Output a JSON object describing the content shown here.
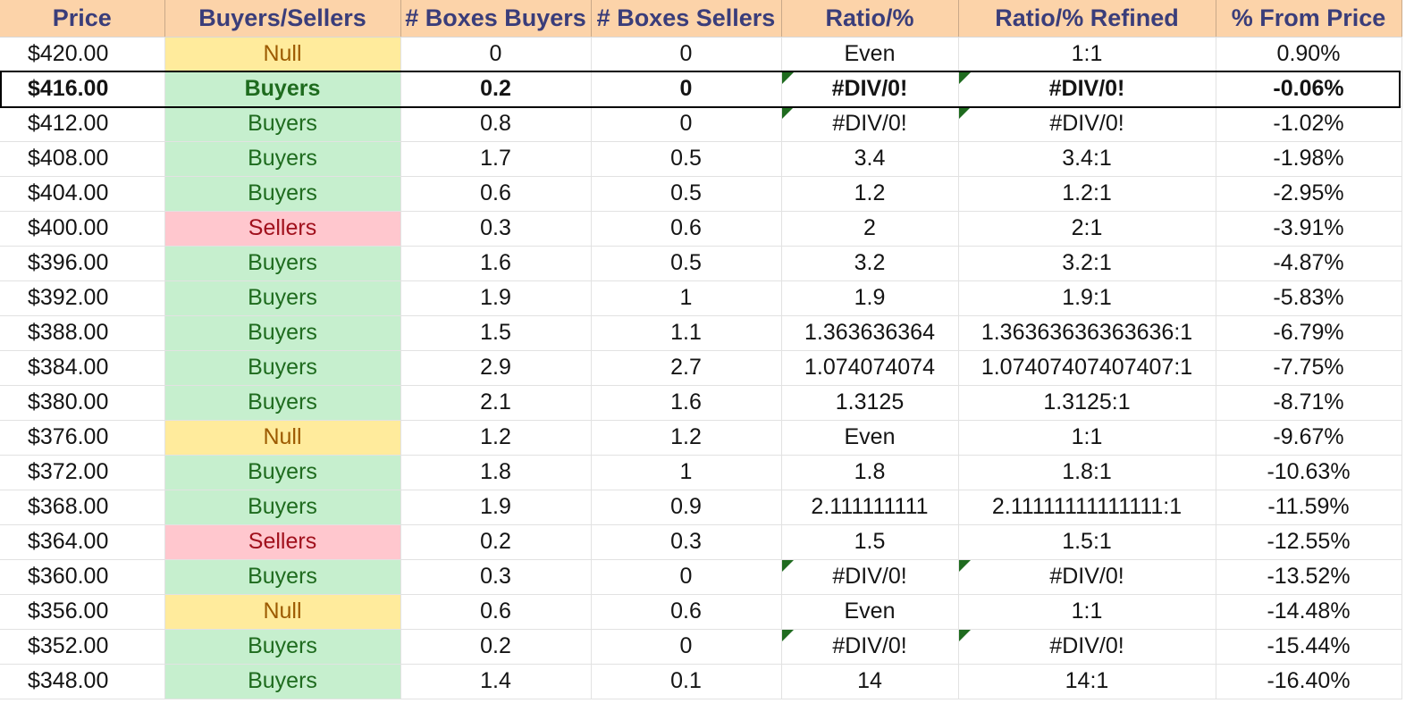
{
  "columns": [
    "Price",
    "Buyers/Sellers",
    "# Boxes Buyers",
    "# Boxes Sellers",
    "Ratio/%",
    "Ratio/% Refined",
    "% From Price"
  ],
  "current_row_index": 1,
  "colors": {
    "header_bg": "#fcd3a9",
    "header_text": "#3a3d7a",
    "buyers_bg": "#c6efce",
    "buyers_text": "#1e6b1e",
    "sellers_bg": "#ffc7ce",
    "sellers_text": "#a0101c",
    "null_bg": "#ffeb9c",
    "null_text": "#9c5a00",
    "error_flag": "#1f6b1f"
  },
  "rows": [
    {
      "price": "$420.00",
      "side": "Null",
      "buyers": "0",
      "sellers": "0",
      "ratio": "Even",
      "refined": "1:1",
      "from_price": "0.90%",
      "flag": false
    },
    {
      "price": "$416.00",
      "side": "Buyers",
      "buyers": "0.2",
      "sellers": "0",
      "ratio": "#DIV/0!",
      "refined": "#DIV/0!",
      "from_price": "-0.06%",
      "flag": true
    },
    {
      "price": "$412.00",
      "side": "Buyers",
      "buyers": "0.8",
      "sellers": "0",
      "ratio": "#DIV/0!",
      "refined": "#DIV/0!",
      "from_price": "-1.02%",
      "flag": true
    },
    {
      "price": "$408.00",
      "side": "Buyers",
      "buyers": "1.7",
      "sellers": "0.5",
      "ratio": "3.4",
      "refined": "3.4:1",
      "from_price": "-1.98%",
      "flag": false
    },
    {
      "price": "$404.00",
      "side": "Buyers",
      "buyers": "0.6",
      "sellers": "0.5",
      "ratio": "1.2",
      "refined": "1.2:1",
      "from_price": "-2.95%",
      "flag": false
    },
    {
      "price": "$400.00",
      "side": "Sellers",
      "buyers": "0.3",
      "sellers": "0.6",
      "ratio": "2",
      "refined": "2:1",
      "from_price": "-3.91%",
      "flag": false
    },
    {
      "price": "$396.00",
      "side": "Buyers",
      "buyers": "1.6",
      "sellers": "0.5",
      "ratio": "3.2",
      "refined": "3.2:1",
      "from_price": "-4.87%",
      "flag": false
    },
    {
      "price": "$392.00",
      "side": "Buyers",
      "buyers": "1.9",
      "sellers": "1",
      "ratio": "1.9",
      "refined": "1.9:1",
      "from_price": "-5.83%",
      "flag": false
    },
    {
      "price": "$388.00",
      "side": "Buyers",
      "buyers": "1.5",
      "sellers": "1.1",
      "ratio": "1.363636364",
      "refined": "1.36363636363636:1",
      "from_price": "-6.79%",
      "flag": false
    },
    {
      "price": "$384.00",
      "side": "Buyers",
      "buyers": "2.9",
      "sellers": "2.7",
      "ratio": "1.074074074",
      "refined": "1.07407407407407:1",
      "from_price": "-7.75%",
      "flag": false
    },
    {
      "price": "$380.00",
      "side": "Buyers",
      "buyers": "2.1",
      "sellers": "1.6",
      "ratio": "1.3125",
      "refined": "1.3125:1",
      "from_price": "-8.71%",
      "flag": false
    },
    {
      "price": "$376.00",
      "side": "Null",
      "buyers": "1.2",
      "sellers": "1.2",
      "ratio": "Even",
      "refined": "1:1",
      "from_price": "-9.67%",
      "flag": false
    },
    {
      "price": "$372.00",
      "side": "Buyers",
      "buyers": "1.8",
      "sellers": "1",
      "ratio": "1.8",
      "refined": "1.8:1",
      "from_price": "-10.63%",
      "flag": false
    },
    {
      "price": "$368.00",
      "side": "Buyers",
      "buyers": "1.9",
      "sellers": "0.9",
      "ratio": "2.111111111",
      "refined": "2.11111111111111:1",
      "from_price": "-11.59%",
      "flag": false
    },
    {
      "price": "$364.00",
      "side": "Sellers",
      "buyers": "0.2",
      "sellers": "0.3",
      "ratio": "1.5",
      "refined": "1.5:1",
      "from_price": "-12.55%",
      "flag": false
    },
    {
      "price": "$360.00",
      "side": "Buyers",
      "buyers": "0.3",
      "sellers": "0",
      "ratio": "#DIV/0!",
      "refined": "#DIV/0!",
      "from_price": "-13.52%",
      "flag": true
    },
    {
      "price": "$356.00",
      "side": "Null",
      "buyers": "0.6",
      "sellers": "0.6",
      "ratio": "Even",
      "refined": "1:1",
      "from_price": "-14.48%",
      "flag": false
    },
    {
      "price": "$352.00",
      "side": "Buyers",
      "buyers": "0.2",
      "sellers": "0",
      "ratio": "#DIV/0!",
      "refined": "#DIV/0!",
      "from_price": "-15.44%",
      "flag": true
    },
    {
      "price": "$348.00",
      "side": "Buyers",
      "buyers": "1.4",
      "sellers": "0.1",
      "ratio": "14",
      "refined": "14:1",
      "from_price": "-16.40%",
      "flag": false
    }
  ]
}
